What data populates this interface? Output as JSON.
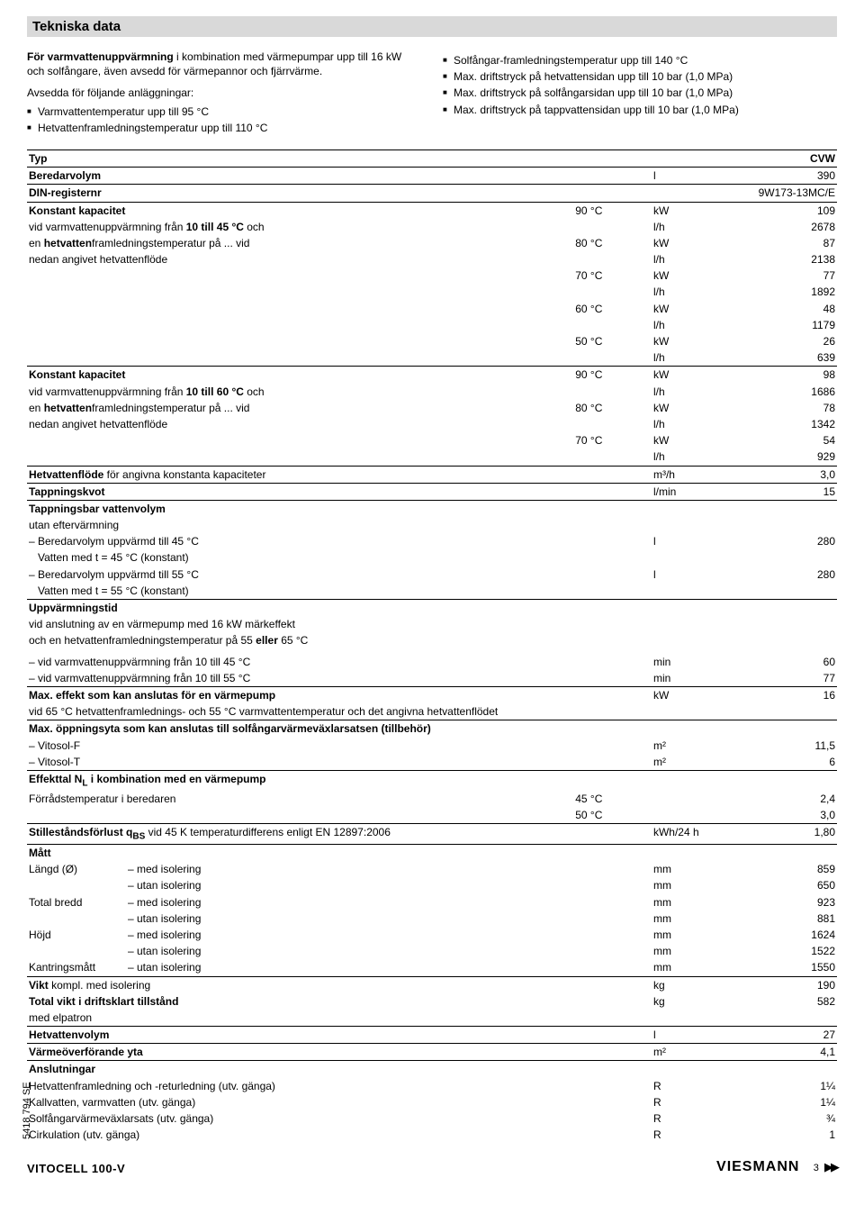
{
  "title": "Tekniska data",
  "intro_left": {
    "para": "För varmvattenuppvärmning i kombination med värmepumpar upp till 16 kW och solfångare, även avsedd för värmepannor och fjärrvärme.",
    "sub_head": "Avsedda för följande anläggningar:",
    "items": [
      "Varmvattentemperatur upp till 95 °C",
      "Hetvattenframledningstemperatur upp till 110 °C"
    ]
  },
  "intro_right": {
    "items": [
      "Solfångar-framledningstemperatur upp till 140 °C",
      "Max. driftstryck på hetvattensidan upp till 10 bar (1,0 MPa)",
      "Max. driftstryck på solfångarsidan upp till 10 bar (1,0 MPa)",
      "Max. driftstryck på tappvattensidan upp till 10 bar (1,0 MPa)"
    ]
  },
  "table": {
    "header": {
      "typ": "Typ",
      "cvw": "CVW"
    },
    "rows": {
      "beredarvolym": {
        "label": "Beredarvolym",
        "unit": "l",
        "val": "390"
      },
      "din": {
        "label": "DIN-registernr",
        "val": "9W173-13MC/E"
      },
      "konst1_head": "Konstant kapacitet",
      "konst1_sub1": "vid varmvattenuppvärmning från 10 till 45 °C och",
      "konst1_sub2a": "en ",
      "konst1_sub2b": "hetvatten",
      "konst1_sub2c": "framledningstemperatur på ... vid",
      "konst1_sub3": "nedan angivet hetvattenflöde",
      "konst1_data": [
        {
          "temp": "90 °C",
          "kw": "109",
          "lh": "2678"
        },
        {
          "temp": "80 °C",
          "kw": "87",
          "lh": "2138"
        },
        {
          "temp": "70 °C",
          "kw": "77",
          "lh": "1892"
        },
        {
          "temp": "60 °C",
          "kw": "48",
          "lh": "1179"
        },
        {
          "temp": "50 °C",
          "kw": "26",
          "lh": "639"
        }
      ],
      "konst2_head": "Konstant kapacitet",
      "konst2_sub1": "vid varmvattenuppvärmning från 10 till 60 °C och",
      "konst2_data": [
        {
          "temp": "90 °C",
          "kw": "98",
          "lh": "1686"
        },
        {
          "temp": "80 °C",
          "kw": "78",
          "lh": "1342"
        },
        {
          "temp": "70 °C",
          "kw": "54",
          "lh": "929"
        }
      ],
      "hetflode": {
        "label_a": "Hetvattenflöde",
        "label_b": " för angivna konstanta kapaciteter",
        "unit": "m³/h",
        "val": "3,0"
      },
      "tappkvot": {
        "label": "Tappningskvot",
        "unit": "l/min",
        "val": "15"
      },
      "tappbar_head": "Tappningsbar vattenvolym",
      "tappbar_sub": "utan eftervärmning",
      "tappbar_r1a": "– Beredarvolym uppvärmd till 45 °C",
      "tappbar_r1b": "   Vatten med t = 45 °C (konstant)",
      "tappbar_r2a": "– Beredarvolym uppvärmd till 55 °C",
      "tappbar_r2b": "   Vatten med t = 55 °C (konstant)",
      "tappbar_unit": "l",
      "tappbar_val": "280",
      "uppv_head": "Uppvärmningstid",
      "uppv_sub1": "vid anslutning av en värmepump med 16 kW märkeffekt",
      "uppv_sub2": "och en hetvattenframledningstemperatur på 55 eller 65 °C",
      "uppv_r1": "– vid varmvattenuppvärmning från 10 till 45 °C",
      "uppv_r2": "– vid varmvattenuppvärmning från 10 till 55 °C",
      "uppv_unit": "min",
      "uppv_v1": "60",
      "uppv_v2": "77",
      "maxeff_a": "Max. effekt som kan anslutas för en värmepump",
      "maxeff_b": "vid 65 °C hetvattenframlednings- och 55 °C varmvattentemperatur och det angivna hetvattenflödet",
      "maxeff_unit": "kW",
      "maxeff_val": "16",
      "maxopp_a": "Max. öppningsyta som kan anslutas till solfångarvärmeväxlarsatsen (tillbehör)",
      "maxopp_r1": "– Vitosol-F",
      "maxopp_r2": "– Vitosol-T",
      "maxopp_unit": "m²",
      "maxopp_v1": "11,5",
      "maxopp_v2": "6",
      "effekttal_head": "Effekttal NL i kombination med en värmepump",
      "effekttal_sub": "Förrådstemperatur i beredaren",
      "effekttal_t1": "45 °C",
      "effekttal_v1": "2,4",
      "effekttal_t2": "50 °C",
      "effekttal_v2": "3,0",
      "stille_a": "Stilleståndsförlust q",
      "stille_b": "BS",
      "stille_c": " vid 45 K temperaturdifferens enligt EN 12897:2006",
      "stille_unit": "kWh/24 h",
      "stille_val": "1,80",
      "matt_head": "Mått",
      "matt_rows": [
        {
          "l": "Längd (Ø)",
          "s": "– med isolering",
          "u": "mm",
          "v": "859"
        },
        {
          "l": "",
          "s": "– utan isolering",
          "u": "mm",
          "v": "650"
        },
        {
          "l": "Total bredd",
          "s": "– med isolering",
          "u": "mm",
          "v": "923"
        },
        {
          "l": "",
          "s": "– utan isolering",
          "u": "mm",
          "v": "881"
        },
        {
          "l": "Höjd",
          "s": "– med isolering",
          "u": "mm",
          "v": "1624"
        },
        {
          "l": "",
          "s": "– utan isolering",
          "u": "mm",
          "v": "1522"
        },
        {
          "l": "Kantringsmått",
          "s": "– utan isolering",
          "u": "mm",
          "v": "1550"
        }
      ],
      "vikt_a": "Vikt",
      "vikt_b": " kompl. med isolering",
      "vikt_unit": "kg",
      "vikt_val": "190",
      "totvikt_a": "Total vikt i driftsklart tillstånd",
      "totvikt_b": "med elpatron",
      "totvikt_unit": "kg",
      "totvikt_val": "582",
      "hetvol": {
        "label": "Hetvattenvolym",
        "unit": "l",
        "val": "27"
      },
      "varmeyta": {
        "label": "Värmeöverförande yta",
        "unit": "m²",
        "val": "4,1"
      },
      "ansl_head": "Anslutningar",
      "ansl_rows": [
        {
          "l": "Hetvattenframledning och -returledning (utv. gänga)",
          "u": "R",
          "v": "1¼"
        },
        {
          "l": "Kallvatten, varmvatten (utv. gänga)",
          "u": "R",
          "v": "1¼"
        },
        {
          "l": "Solfångarvärmeväxlarsats (utv. gänga)",
          "u": "R",
          "v": "¾"
        },
        {
          "l": "Cirkulation (utv. gänga)",
          "u": "R",
          "v": "1"
        }
      ]
    }
  },
  "footer": {
    "left": "VITOCELL 100-V",
    "right": "VIESMANN",
    "page": "3",
    "side": "5418 794 SE",
    "arrows": "▶▶"
  },
  "units": {
    "kw": "kW",
    "lh": "l/h"
  }
}
